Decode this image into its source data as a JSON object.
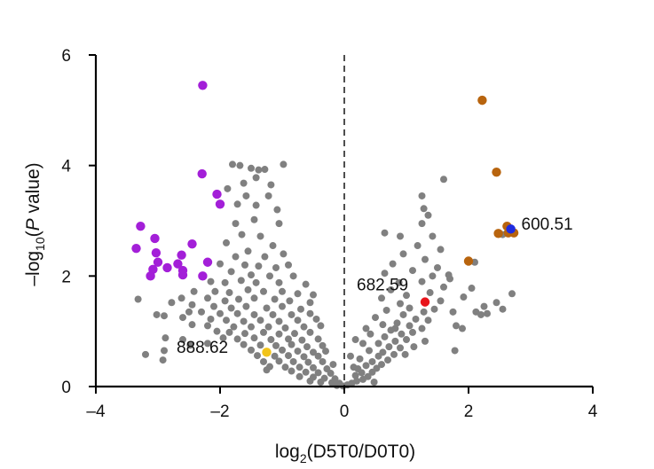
{
  "chart_data": {
    "type": "scatter",
    "title": "",
    "xlabel": {
      "prefix": "log",
      "sub": "2",
      "suffix": "(D5T0/D0T0)"
    },
    "ylabel": {
      "prefix": "–log",
      "sub": "10",
      "mid": "(",
      "italic": "P",
      "suffix": " value)"
    },
    "xlim": [
      -4,
      4
    ],
    "ylim": [
      0,
      6
    ],
    "xticks": [
      -4,
      -2,
      0,
      2,
      4
    ],
    "xtick_labels": [
      "–4",
      "–2",
      "0",
      "2",
      "4"
    ],
    "yticks": [
      0,
      2,
      4,
      6
    ],
    "ytick_labels": [
      "0",
      "2",
      "4",
      "6"
    ],
    "reference_line": {
      "x": 0,
      "style": "dashed",
      "color": "#222222"
    },
    "grid": false,
    "colors": {
      "gray": "#808080",
      "purple": "#A31FD8",
      "orange": "#B8640E",
      "blue": "#1F2BE0",
      "red": "#E8141B",
      "yellow": "#F2C41A"
    },
    "annotations": [
      {
        "text": "600.51",
        "x": 2.85,
        "y": 2.95
      },
      {
        "text": "682.59",
        "x": 0.2,
        "y": 1.85
      },
      {
        "text": "888.62",
        "x": -2.7,
        "y": 0.72
      }
    ],
    "series": [
      {
        "color_key": "purple",
        "points": [
          [
            -2.28,
            5.45
          ],
          [
            -2.29,
            3.85
          ],
          [
            -2.05,
            3.48
          ],
          [
            -2.0,
            3.3
          ],
          [
            -3.28,
            2.9
          ],
          [
            -3.05,
            2.68
          ],
          [
            -3.35,
            2.5
          ],
          [
            -3.03,
            2.42
          ],
          [
            -3.0,
            2.25
          ],
          [
            -2.45,
            2.58
          ],
          [
            -2.62,
            2.38
          ],
          [
            -2.2,
            2.25
          ],
          [
            -2.68,
            2.22
          ],
          [
            -2.85,
            2.15
          ],
          [
            -2.6,
            2.1
          ],
          [
            -3.08,
            2.12
          ],
          [
            -2.6,
            2.02
          ],
          [
            -2.28,
            2.0
          ],
          [
            -3.12,
            2.0
          ]
        ]
      },
      {
        "color_key": "orange",
        "points": [
          [
            2.22,
            5.18
          ],
          [
            2.45,
            3.88
          ],
          [
            2.62,
            2.9
          ],
          [
            2.48,
            2.77
          ],
          [
            2.64,
            2.78
          ],
          [
            2.73,
            2.78
          ],
          [
            2.0,
            2.27
          ]
        ]
      },
      {
        "color_key": "blue",
        "points": [
          [
            2.68,
            2.85
          ]
        ]
      },
      {
        "color_key": "red",
        "points": [
          [
            1.3,
            1.53
          ]
        ]
      },
      {
        "color_key": "yellow",
        "points": [
          [
            -1.25,
            0.62
          ]
        ]
      }
    ],
    "gray_points": [
      [
        -1.8,
        4.02
      ],
      [
        -1.68,
        4.0
      ],
      [
        -1.5,
        3.95
      ],
      [
        -1.38,
        3.92
      ],
      [
        -1.28,
        3.93
      ],
      [
        -0.98,
        4.02
      ],
      [
        -1.42,
        3.78
      ],
      [
        -1.62,
        3.68
      ],
      [
        -1.88,
        3.58
      ],
      [
        -1.58,
        3.45
      ],
      [
        -1.18,
        3.65
      ],
      [
        -1.22,
        3.45
      ],
      [
        -1.72,
        3.3
      ],
      [
        -1.42,
        3.28
      ],
      [
        -1.08,
        3.2
      ],
      [
        -1.45,
        3.02
      ],
      [
        -1.75,
        2.95
      ],
      [
        -1.05,
        2.95
      ],
      [
        -1.65,
        2.75
      ],
      [
        -1.35,
        2.72
      ],
      [
        -1.9,
        2.6
      ],
      [
        -1.15,
        2.55
      ],
      [
        -1.55,
        2.45
      ],
      [
        -1.75,
        2.35
      ],
      [
        -1.28,
        2.35
      ],
      [
        -0.98,
        2.4
      ],
      [
        -2.0,
        2.22
      ],
      [
        -1.6,
        2.2
      ],
      [
        -1.38,
        2.18
      ],
      [
        -1.1,
        2.15
      ],
      [
        -0.9,
        2.2
      ],
      [
        -1.82,
        2.08
      ],
      [
        -1.5,
        2.02
      ],
      [
        -1.2,
        2.0
      ],
      [
        -0.82,
        2.0
      ],
      [
        -2.15,
        1.9
      ],
      [
        -1.92,
        1.88
      ],
      [
        -1.66,
        1.92
      ],
      [
        -1.42,
        1.88
      ],
      [
        -1.05,
        1.88
      ],
      [
        -0.62,
        1.85
      ],
      [
        -2.42,
        1.72
      ],
      [
        -2.08,
        1.72
      ],
      [
        -1.85,
        1.7
      ],
      [
        -1.55,
        1.75
      ],
      [
        -1.3,
        1.72
      ],
      [
        -1.0,
        1.72
      ],
      [
        -0.75,
        1.68
      ],
      [
        -0.5,
        1.66
      ],
      [
        -2.62,
        1.6
      ],
      [
        -2.2,
        1.6
      ],
      [
        -1.92,
        1.55
      ],
      [
        -1.7,
        1.58
      ],
      [
        -1.45,
        1.6
      ],
      [
        -1.12,
        1.58
      ],
      [
        -0.88,
        1.55
      ],
      [
        -0.55,
        1.52
      ],
      [
        -3.32,
        1.58
      ],
      [
        -2.78,
        1.52
      ],
      [
        -2.45,
        1.48
      ],
      [
        -2.1,
        1.45
      ],
      [
        -1.82,
        1.42
      ],
      [
        -1.58,
        1.45
      ],
      [
        -1.25,
        1.42
      ],
      [
        -1.0,
        1.45
      ],
      [
        -0.7,
        1.4
      ],
      [
        -2.3,
        1.35
      ],
      [
        -2.0,
        1.32
      ],
      [
        -1.72,
        1.32
      ],
      [
        -1.45,
        1.3
      ],
      [
        -1.15,
        1.3
      ],
      [
        -0.85,
        1.3
      ],
      [
        -0.55,
        1.32
      ],
      [
        -3.02,
        1.3
      ],
      [
        -2.9,
        1.28
      ],
      [
        -2.6,
        1.25
      ],
      [
        -2.15,
        1.22
      ],
      [
        -1.9,
        1.2
      ],
      [
        -1.62,
        1.18
      ],
      [
        -1.35,
        1.2
      ],
      [
        -1.05,
        1.18
      ],
      [
        -0.75,
        1.2
      ],
      [
        -0.45,
        1.22
      ],
      [
        -2.45,
        1.12
      ],
      [
        -2.2,
        1.1
      ],
      [
        -1.78,
        1.08
      ],
      [
        -1.5,
        1.08
      ],
      [
        -1.22,
        1.08
      ],
      [
        -0.95,
        1.06
      ],
      [
        -0.65,
        1.08
      ],
      [
        -0.38,
        1.1
      ],
      [
        -2.05,
        1.0
      ],
      [
        -1.85,
        0.98
      ],
      [
        -1.6,
        0.96
      ],
      [
        -1.3,
        0.98
      ],
      [
        -1.05,
        0.95
      ],
      [
        -0.8,
        0.96
      ],
      [
        -0.55,
        0.98
      ],
      [
        -1.95,
        0.88
      ],
      [
        -1.72,
        0.86
      ],
      [
        -1.45,
        0.88
      ],
      [
        -1.18,
        0.85
      ],
      [
        -0.9,
        0.86
      ],
      [
        -0.68,
        0.84
      ],
      [
        -0.42,
        0.86
      ],
      [
        -1.62,
        0.76
      ],
      [
        -1.35,
        0.75
      ],
      [
        -1.1,
        0.74
      ],
      [
        -0.85,
        0.76
      ],
      [
        -0.6,
        0.72
      ],
      [
        -0.35,
        0.74
      ],
      [
        -1.5,
        0.66
      ],
      [
        -1.0,
        0.66
      ],
      [
        -0.75,
        0.64
      ],
      [
        -0.5,
        0.62
      ],
      [
        -0.3,
        0.64
      ],
      [
        -1.4,
        0.56
      ],
      [
        -1.12,
        0.55
      ],
      [
        -0.9,
        0.56
      ],
      [
        -0.65,
        0.54
      ],
      [
        -0.42,
        0.55
      ],
      [
        -1.3,
        0.45
      ],
      [
        -1.05,
        0.46
      ],
      [
        -0.82,
        0.45
      ],
      [
        -0.58,
        0.44
      ],
      [
        -0.35,
        0.45
      ],
      [
        -0.18,
        0.4
      ],
      [
        -1.2,
        0.36
      ],
      [
        -0.95,
        0.35
      ],
      [
        -0.72,
        0.35
      ],
      [
        -0.5,
        0.34
      ],
      [
        -0.28,
        0.32
      ],
      [
        -1.25,
        0.3
      ],
      [
        -0.85,
        0.28
      ],
      [
        -0.62,
        0.26
      ],
      [
        -0.42,
        0.25
      ],
      [
        -0.22,
        0.24
      ],
      [
        -0.72,
        0.18
      ],
      [
        -0.5,
        0.17
      ],
      [
        -0.32,
        0.15
      ],
      [
        -0.15,
        0.14
      ],
      [
        -0.55,
        0.1
      ],
      [
        -0.38,
        0.08
      ],
      [
        -0.2,
        0.07
      ],
      [
        -0.08,
        0.06
      ],
      [
        -0.12,
        0.02
      ],
      [
        -0.02,
        0.01
      ],
      [
        -2.88,
        0.88
      ],
      [
        -2.6,
        0.85
      ],
      [
        -2.9,
        0.65
      ],
      [
        -3.2,
        0.58
      ],
      [
        -2.92,
        0.48
      ],
      [
        -2.48,
        0.75
      ],
      [
        -2.2,
        0.78
      ],
      [
        -2.5,
        1.35
      ],
      [
        0.05,
        0.03
      ],
      [
        0.12,
        0.06
      ],
      [
        0.2,
        0.1
      ],
      [
        0.3,
        0.13
      ],
      [
        0.18,
        0.2
      ],
      [
        0.38,
        0.18
      ],
      [
        0.28,
        0.25
      ],
      [
        0.45,
        0.26
      ],
      [
        0.22,
        0.32
      ],
      [
        0.52,
        0.33
      ],
      [
        0.35,
        0.38
      ],
      [
        0.6,
        0.4
      ],
      [
        0.45,
        0.45
      ],
      [
        0.7,
        0.48
      ],
      [
        0.55,
        0.55
      ],
      [
        0.25,
        0.5
      ],
      [
        0.62,
        0.62
      ],
      [
        0.8,
        0.58
      ],
      [
        0.4,
        0.65
      ],
      [
        0.72,
        0.72
      ],
      [
        0.9,
        0.7
      ],
      [
        0.55,
        0.78
      ],
      [
        0.82,
        0.82
      ],
      [
        1.0,
        0.85
      ],
      [
        0.65,
        0.9
      ],
      [
        0.92,
        0.95
      ],
      [
        1.1,
        0.98
      ],
      [
        0.75,
        1.02
      ],
      [
        1.05,
        1.1
      ],
      [
        1.25,
        1.05
      ],
      [
        0.85,
        1.15
      ],
      [
        1.15,
        1.22
      ],
      [
        1.35,
        1.2
      ],
      [
        0.95,
        1.3
      ],
      [
        1.28,
        1.35
      ],
      [
        0.68,
        1.38
      ],
      [
        1.05,
        1.42
      ],
      [
        1.45,
        1.4
      ],
      [
        0.9,
        1.5
      ],
      [
        1.55,
        1.55
      ],
      [
        0.6,
        1.6
      ],
      [
        1.0,
        1.65
      ],
      [
        1.38,
        1.7
      ],
      [
        0.75,
        1.75
      ],
      [
        1.6,
        1.8
      ],
      [
        0.88,
        1.88
      ],
      [
        1.25,
        1.9
      ],
      [
        1.7,
        1.95
      ],
      [
        0.65,
        2.05
      ],
      [
        1.1,
        2.1
      ],
      [
        1.5,
        2.15
      ],
      [
        0.78,
        2.22
      ],
      [
        1.3,
        2.3
      ],
      [
        0.95,
        2.4
      ],
      [
        1.55,
        2.48
      ],
      [
        1.18,
        2.55
      ],
      [
        0.65,
        2.78
      ],
      [
        1.42,
        2.72
      ],
      [
        0.9,
        2.72
      ],
      [
        1.25,
        2.95
      ],
      [
        1.35,
        3.1
      ],
      [
        1.28,
        3.22
      ],
      [
        1.25,
        3.45
      ],
      [
        1.6,
        3.75
      ],
      [
        1.42,
        2.0
      ],
      [
        1.75,
        1.35
      ],
      [
        1.8,
        1.1
      ],
      [
        1.9,
        1.05
      ],
      [
        1.78,
        0.65
      ],
      [
        1.92,
        1.62
      ],
      [
        1.68,
        2.02
      ],
      [
        2.05,
        1.78
      ],
      [
        2.12,
        1.35
      ],
      [
        2.2,
        1.3
      ],
      [
        2.3,
        1.32
      ],
      [
        2.25,
        1.45
      ],
      [
        2.45,
        1.52
      ],
      [
        2.55,
        1.4
      ],
      [
        2.7,
        1.68
      ],
      [
        2.55,
        2.75
      ],
      [
        2.1,
        2.25
      ],
      [
        0.18,
        0.85
      ],
      [
        0.3,
        0.78
      ],
      [
        0.1,
        0.55
      ],
      [
        0.35,
        1.05
      ],
      [
        0.5,
        1.25
      ],
      [
        0.42,
        0.95
      ],
      [
        0.62,
        1.12
      ],
      [
        0.82,
        1.05
      ],
      [
        1.12,
        0.72
      ],
      [
        1.3,
        0.82
      ],
      [
        0.98,
        0.58
      ],
      [
        0.15,
        0.35
      ],
      [
        0.48,
        0.08
      ]
    ]
  }
}
